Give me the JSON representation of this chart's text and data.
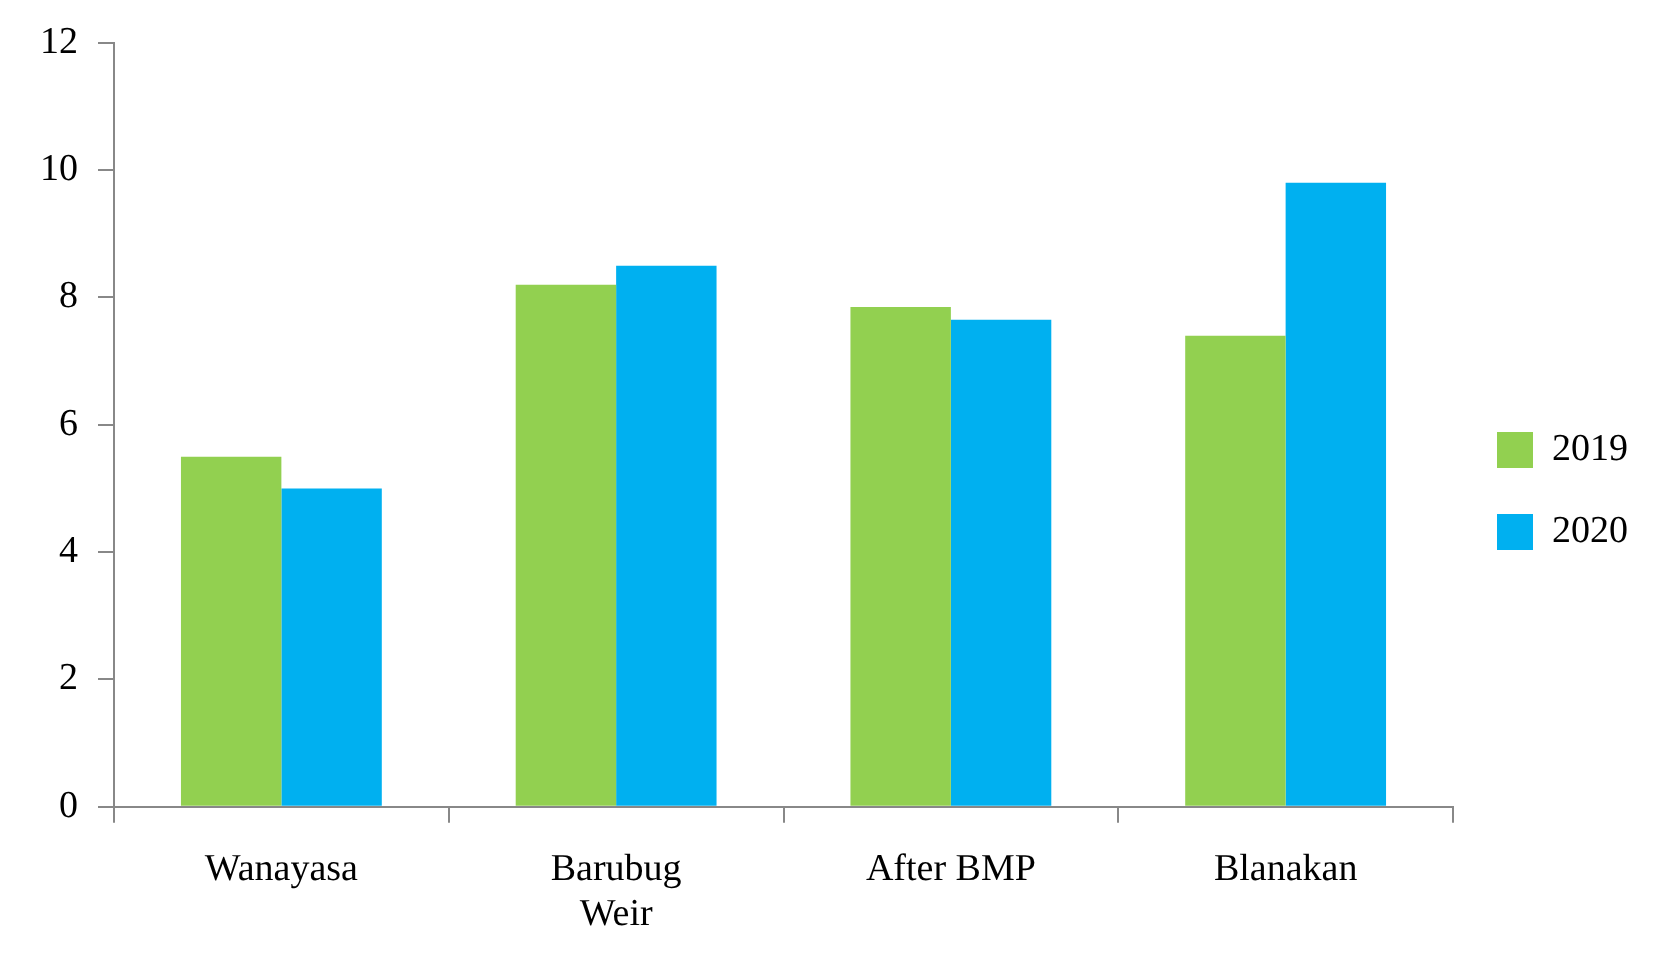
{
  "chart_data": {
    "type": "bar",
    "categories": [
      "Wanayasa",
      "Barubug Weir",
      "After BMP",
      "Blanakan"
    ],
    "series": [
      {
        "name": "2019",
        "color": "#92d050",
        "values": [
          5.5,
          8.2,
          7.85,
          7.4
        ]
      },
      {
        "name": "2020",
        "color": "#00b0f0",
        "values": [
          5.0,
          8.5,
          7.65,
          9.8
        ]
      }
    ],
    "ylim": [
      0,
      12
    ],
    "yticks": [
      0,
      2,
      4,
      6,
      8,
      10,
      12
    ],
    "grid": false,
    "legend": "right"
  }
}
